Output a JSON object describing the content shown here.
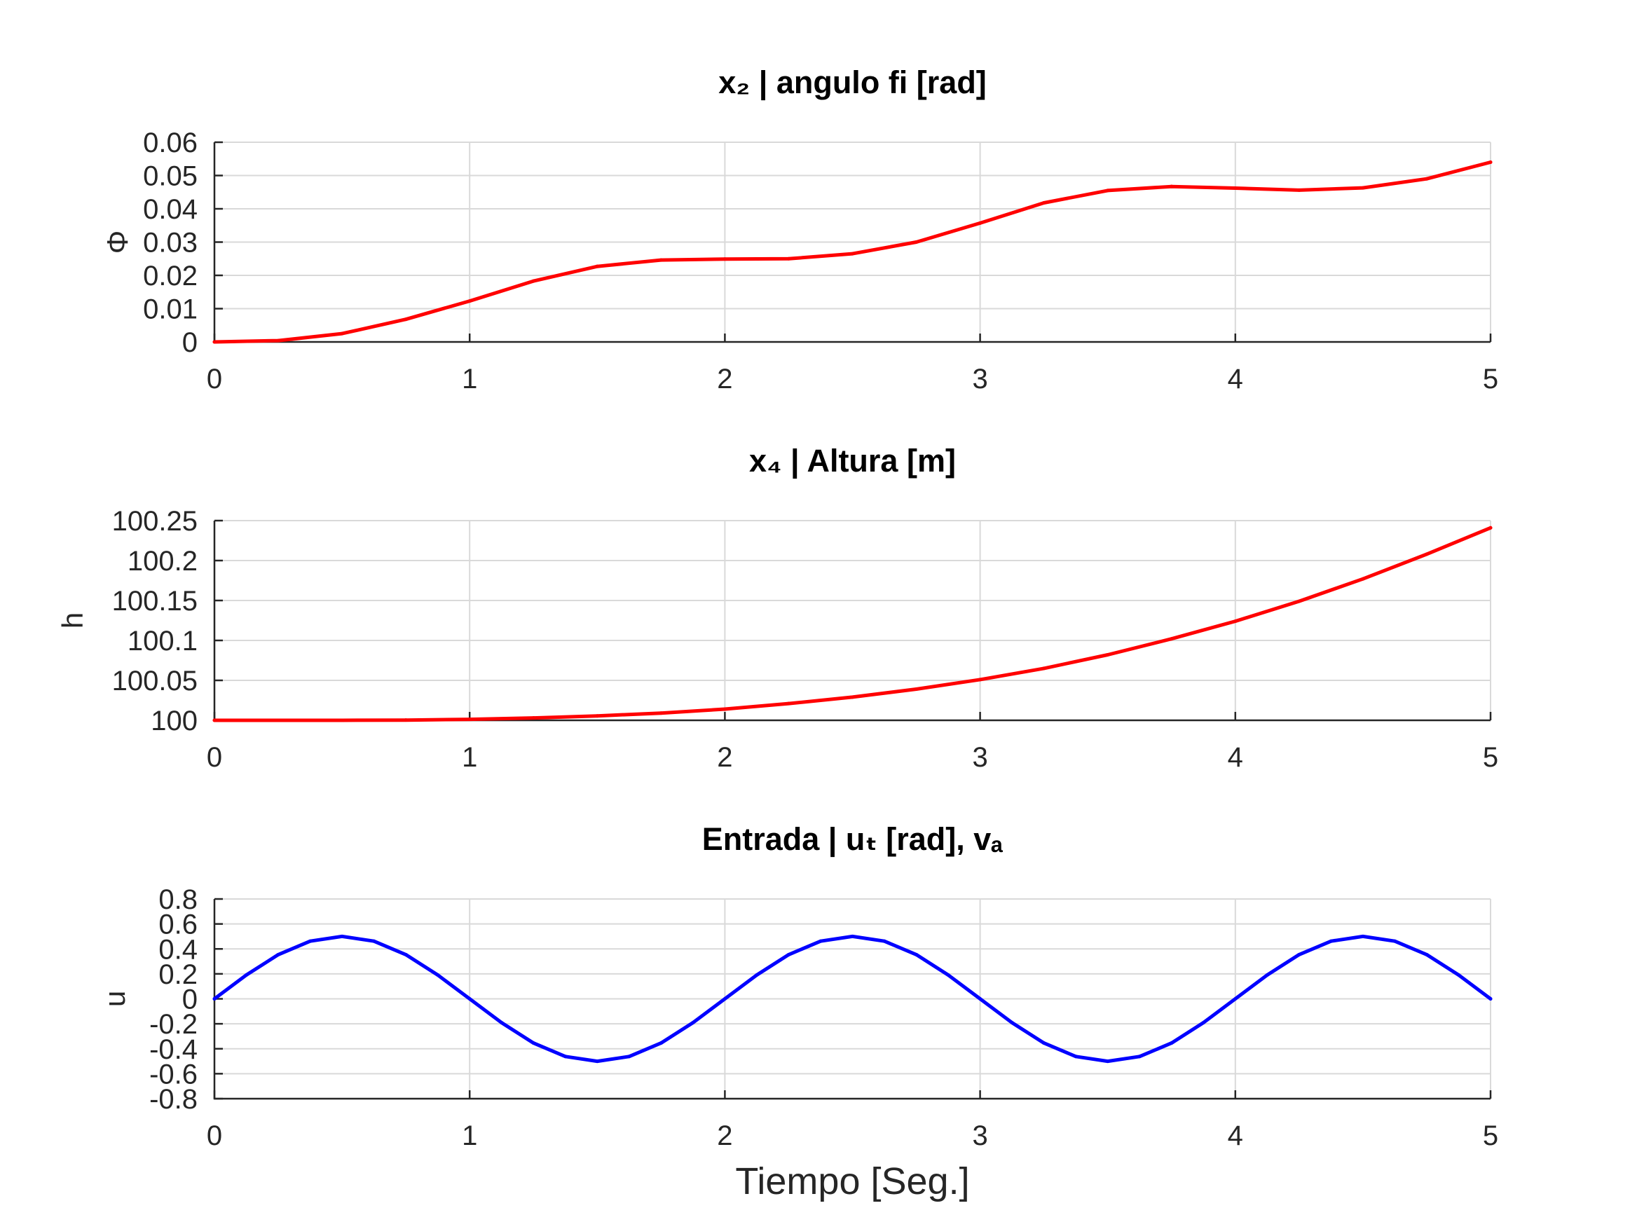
{
  "chart_data": [
    {
      "type": "line",
      "title": "x₂ | angulo fi [rad]",
      "xlabel": "",
      "ylabel": "Φ",
      "xlim": [
        0,
        5
      ],
      "ylim": [
        0,
        0.06
      ],
      "grid": true,
      "xticks": [
        "0",
        "1",
        "2",
        "3",
        "4",
        "5"
      ],
      "yticks": [
        "0",
        "0.01",
        "0.02",
        "0.03",
        "0.04",
        "0.05",
        "0.06"
      ],
      "series": [
        {
          "color": "#ff0000",
          "x": [
            0,
            0.25,
            0.5,
            0.75,
            1.0,
            1.25,
            1.5,
            1.75,
            2.0,
            2.25,
            2.5,
            2.75,
            3.0,
            3.25,
            3.5,
            3.75,
            4.0,
            4.25,
            4.5,
            4.75,
            5.0
          ],
          "y": [
            0,
            0.0004,
            0.0025,
            0.0068,
            0.0123,
            0.0183,
            0.0227,
            0.0246,
            0.0249,
            0.025,
            0.0265,
            0.03,
            0.0357,
            0.0418,
            0.0455,
            0.0467,
            0.0462,
            0.0456,
            0.0463,
            0.049,
            0.054
          ]
        }
      ]
    },
    {
      "type": "line",
      "title": "x₄ | Altura [m]",
      "xlabel": "",
      "ylabel": "h",
      "xlim": [
        0,
        5
      ],
      "ylim": [
        100,
        100.25
      ],
      "grid": true,
      "xticks": [
        "0",
        "1",
        "2",
        "3",
        "4",
        "5"
      ],
      "yticks": [
        "100",
        "100.05",
        "100.1",
        "100.15",
        "100.2",
        "100.25"
      ],
      "series": [
        {
          "color": "#ff0000",
          "x": [
            0,
            0.25,
            0.5,
            0.75,
            1.0,
            1.25,
            1.5,
            1.75,
            2.0,
            2.25,
            2.5,
            2.75,
            3.0,
            3.25,
            3.5,
            3.75,
            4.0,
            4.25,
            4.5,
            4.75,
            5.0
          ],
          "y": [
            100.0,
            100.0,
            100.0,
            100.0003,
            100.0012,
            100.003,
            100.0055,
            100.009,
            100.014,
            100.021,
            100.029,
            100.039,
            100.051,
            100.065,
            100.082,
            100.102,
            100.124,
            100.149,
            100.177,
            100.208,
            100.241
          ]
        }
      ]
    },
    {
      "type": "line",
      "title": "Entrada | uₜ [rad], vₐ",
      "xlabel": "Tiempo [Seg.]",
      "ylabel": "u",
      "xlim": [
        0,
        5
      ],
      "ylim": [
        -0.8,
        0.8
      ],
      "grid": true,
      "xticks": [
        "0",
        "1",
        "2",
        "3",
        "4",
        "5"
      ],
      "yticks": [
        "-0.8",
        "-0.6",
        "-0.4",
        "-0.2",
        "0",
        "0.2",
        "0.4",
        "0.6",
        "0.8"
      ],
      "series": [
        {
          "color": "#0000ff",
          "x": [
            0,
            0.125,
            0.25,
            0.375,
            0.5,
            0.625,
            0.75,
            0.875,
            1.0,
            1.125,
            1.25,
            1.375,
            1.5,
            1.625,
            1.75,
            1.875,
            2.0,
            2.125,
            2.25,
            2.375,
            2.5,
            2.625,
            2.75,
            2.875,
            3.0,
            3.125,
            3.25,
            3.375,
            3.5,
            3.625,
            3.75,
            3.875,
            4.0,
            4.125,
            4.25,
            4.375,
            4.5,
            4.625,
            4.75,
            4.875,
            5.0
          ],
          "y": [
            0,
            0.191,
            0.354,
            0.462,
            0.5,
            0.462,
            0.354,
            0.191,
            0,
            -0.191,
            -0.354,
            -0.462,
            -0.5,
            -0.462,
            -0.354,
            -0.191,
            0,
            0.191,
            0.354,
            0.462,
            0.5,
            0.462,
            0.354,
            0.191,
            0,
            -0.191,
            -0.354,
            -0.462,
            -0.5,
            -0.462,
            -0.354,
            -0.191,
            0,
            0.191,
            0.354,
            0.462,
            0.5,
            0.462,
            0.354,
            0.191,
            0
          ]
        }
      ]
    }
  ]
}
